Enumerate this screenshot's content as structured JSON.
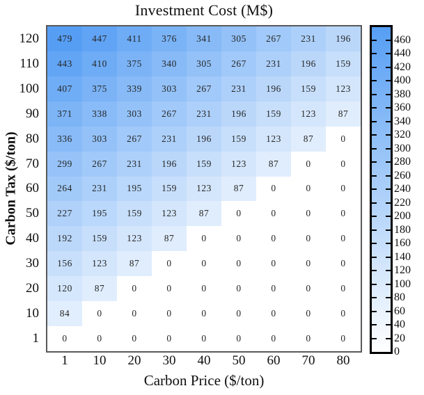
{
  "chart_data": {
    "type": "heatmap",
    "title": "Investment Cost (M$)",
    "xlabel": "Carbon Price ($/ton)",
    "ylabel": "Carbon Tax ($/ton)",
    "x_categories": [
      "1",
      "10",
      "20",
      "30",
      "40",
      "50",
      "60",
      "70",
      "80"
    ],
    "y_categories_top_to_bottom": [
      "120",
      "110",
      "100",
      "90",
      "80",
      "70",
      "60",
      "50",
      "40",
      "30",
      "20",
      "10",
      "1"
    ],
    "rows_top_to_bottom": [
      {
        "y": "120",
        "values": [
          479,
          447,
          411,
          376,
          341,
          305,
          267,
          231,
          196
        ]
      },
      {
        "y": "110",
        "values": [
          443,
          410,
          375,
          340,
          305,
          267,
          231,
          196,
          159
        ]
      },
      {
        "y": "100",
        "values": [
          407,
          375,
          339,
          303,
          267,
          231,
          196,
          159,
          123
        ]
      },
      {
        "y": "90",
        "values": [
          371,
          338,
          303,
          267,
          231,
          196,
          159,
          123,
          87
        ]
      },
      {
        "y": "80",
        "values": [
          336,
          303,
          267,
          231,
          196,
          159,
          123,
          87,
          0
        ]
      },
      {
        "y": "70",
        "values": [
          299,
          267,
          231,
          196,
          159,
          123,
          87,
          0,
          0
        ]
      },
      {
        "y": "60",
        "values": [
          264,
          231,
          195,
          159,
          123,
          87,
          0,
          0,
          0
        ]
      },
      {
        "y": "50",
        "values": [
          227,
          195,
          159,
          123,
          87,
          0,
          0,
          0,
          0
        ]
      },
      {
        "y": "40",
        "values": [
          192,
          159,
          123,
          87,
          0,
          0,
          0,
          0,
          0
        ]
      },
      {
        "y": "30",
        "values": [
          156,
          123,
          87,
          0,
          0,
          0,
          0,
          0,
          0
        ]
      },
      {
        "y": "20",
        "values": [
          120,
          87,
          0,
          0,
          0,
          0,
          0,
          0,
          0
        ]
      },
      {
        "y": "10",
        "values": [
          84,
          0,
          0,
          0,
          0,
          0,
          0,
          0,
          0
        ]
      },
      {
        "y": "1",
        "values": [
          0,
          0,
          0,
          0,
          0,
          0,
          0,
          0,
          0
        ]
      }
    ],
    "annotated": true,
    "grid": false,
    "colorbar": {
      "min": 0,
      "max": 479,
      "tick_min": 0,
      "tick_max": 460,
      "tick_step": 20,
      "color_low": "#ffffff",
      "color_high": "#569ef4",
      "position": "right"
    },
    "colors": {
      "plot_border": "#595959",
      "colorbar_border": "#000000",
      "cell_text": "#262626",
      "axis_text": "#0f0f0f"
    }
  }
}
